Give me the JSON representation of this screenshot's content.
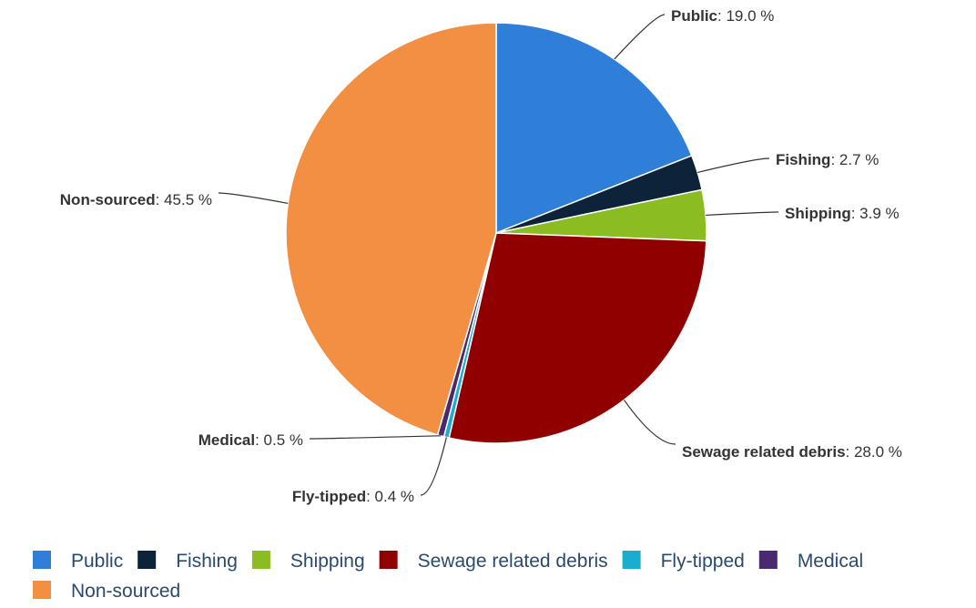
{
  "chart_data": {
    "type": "pie",
    "title": "",
    "unit": "%",
    "slices": [
      {
        "name": "Public",
        "value": 19.0,
        "color": "#2f7ed8"
      },
      {
        "name": "Fishing",
        "value": 2.7,
        "color": "#0d233a"
      },
      {
        "name": "Shipping",
        "value": 3.9,
        "color": "#8bbc21"
      },
      {
        "name": "Sewage related debris",
        "value": 28.0,
        "color": "#910000"
      },
      {
        "name": "Fly-tipped",
        "value": 0.4,
        "color": "#1aadce"
      },
      {
        "name": "Medical",
        "value": 0.5,
        "color": "#492970"
      },
      {
        "name": "Non-sourced",
        "value": 45.5,
        "color": "#f28f43"
      }
    ],
    "data_label_format": "{name}: {value} %",
    "legend_position": "bottom"
  }
}
